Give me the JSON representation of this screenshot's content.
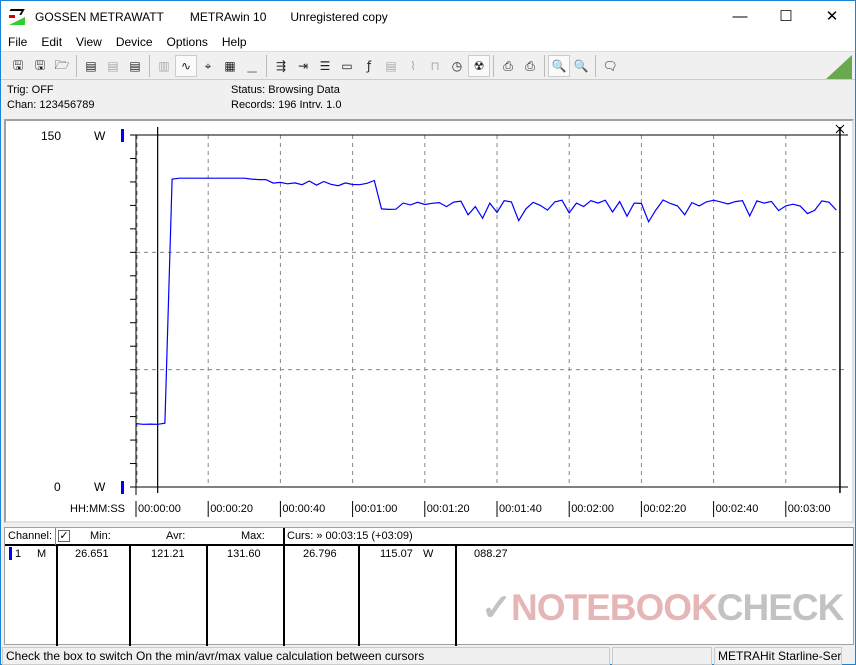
{
  "titlebar": {
    "brand": "GOSSEN METRAWATT",
    "app": "METRAwin 10",
    "license": "Unregistered copy",
    "minimize": "—",
    "maximize": "☐",
    "close": "✕"
  },
  "menu": [
    "File",
    "Edit",
    "View",
    "Device",
    "Options",
    "Help"
  ],
  "toolbar": [
    {
      "name": "save-as-icon",
      "glyph": "🖫"
    },
    {
      "name": "save-icon",
      "glyph": "🖫"
    },
    {
      "name": "open-folder-icon",
      "glyph": "🗁"
    },
    null,
    {
      "name": "device-read-icon",
      "glyph": "▤"
    },
    {
      "name": "device-stop-icon",
      "glyph": "▤",
      "disabled": true
    },
    {
      "name": "device-memory-icon",
      "glyph": "▤"
    },
    null,
    {
      "name": "display-icon",
      "glyph": "▥",
      "disabled": true
    },
    {
      "name": "waveform-view-icon",
      "glyph": "∿",
      "active": true
    },
    {
      "name": "crosshair-icon",
      "glyph": "⌖"
    },
    {
      "name": "table-view-icon",
      "glyph": "▦"
    },
    {
      "name": "histogram-icon",
      "glyph": "▁",
      "disabled": true
    },
    null,
    {
      "name": "export-icon",
      "glyph": "⇶"
    },
    {
      "name": "transfer-icon",
      "glyph": "⇥"
    },
    {
      "name": "list-icon",
      "glyph": "☰"
    },
    {
      "name": "monitor-icon",
      "glyph": "▭"
    },
    {
      "name": "function-icon",
      "glyph": "ƒ"
    },
    {
      "name": "meter-icon",
      "glyph": "▤",
      "disabled": true
    },
    {
      "name": "signal-icon",
      "glyph": "⌇",
      "disabled": true
    },
    {
      "name": "pulse-icon",
      "glyph": "⊓",
      "disabled": true
    },
    {
      "name": "timer-icon",
      "glyph": "◷"
    },
    {
      "name": "trigger-icon",
      "glyph": "☢",
      "active": true
    },
    null,
    {
      "name": "print-preview-icon",
      "glyph": "⎙"
    },
    {
      "name": "print-icon",
      "glyph": "⎙"
    },
    null,
    {
      "name": "zoom-wave-icon",
      "glyph": "🔍",
      "active": true
    },
    {
      "name": "zoom-icon",
      "glyph": "🔍"
    },
    null,
    {
      "name": "comment-icon",
      "glyph": "🗨"
    }
  ],
  "info": {
    "trig": "Trig: OFF",
    "chan": "Chan:  123456789",
    "status": "Status:   Browsing Data",
    "records": "Records: 196   Intrv. 1.0"
  },
  "chart_data": {
    "type": "line",
    "ylim": [
      0,
      150
    ],
    "y_top_label": "150",
    "y_bottom_label": "0",
    "yunit": "W",
    "xlabel": "HH:MM:SS",
    "xticks": [
      "00:00:00",
      "00:00:20",
      "00:00:40",
      "00:01:00",
      "00:01:20",
      "00:01:40",
      "00:02:00",
      "00:02:20",
      "00:02:40",
      "00:03:00"
    ],
    "grid": true,
    "series_color": "#0000ff",
    "x_seconds": [
      0,
      2,
      4,
      6,
      8,
      10,
      12,
      14,
      16,
      18,
      20,
      22,
      24,
      26,
      28,
      30,
      32,
      34,
      36,
      38,
      40,
      42,
      44,
      46,
      48,
      50,
      52,
      54,
      56,
      58,
      60,
      62,
      64,
      66,
      68,
      70,
      72,
      74,
      76,
      78,
      80,
      82,
      84,
      86,
      88,
      90,
      92,
      94,
      96,
      98,
      100,
      102,
      104,
      106,
      108,
      110,
      112,
      114,
      116,
      118,
      120,
      122,
      124,
      126,
      128,
      130,
      132,
      134,
      136,
      138,
      140,
      142,
      144,
      146,
      148,
      150,
      152,
      154,
      156,
      158,
      160,
      162,
      164,
      166,
      168,
      170,
      172,
      174,
      176,
      178,
      180,
      182,
      184,
      186,
      188,
      190,
      192,
      194
    ],
    "values": [
      27.0,
      26.7,
      26.8,
      26.7,
      27.2,
      131.2,
      131.6,
      131.6,
      131.6,
      131.6,
      131.6,
      131.6,
      131.6,
      131.6,
      131.6,
      131.6,
      131.2,
      131.0,
      131.0,
      129.5,
      129.8,
      129.2,
      129.6,
      128.8,
      130.4,
      128.6,
      130.2,
      129.0,
      128.4,
      129.6,
      128.9,
      128.8,
      129.4,
      130.6,
      118.5,
      118.3,
      118.4,
      121.0,
      120.2,
      121.3,
      120.4,
      120.9,
      121.2,
      119.5,
      121.4,
      121.8,
      116.0,
      119.5,
      114.5,
      121.0,
      117.0,
      122.0,
      121.5,
      113.5,
      118.5,
      121.3,
      120.0,
      118.0,
      121.5,
      122.2,
      116.8,
      121.0,
      119.5,
      122.0,
      121.0,
      122.2,
      117.2,
      121.6,
      115.4,
      121.0,
      120.8,
      113.0,
      118.0,
      122.3,
      120.8,
      119.8,
      116.0,
      121.2,
      119.8,
      121.5,
      122.2,
      121.5,
      120.6,
      121.6,
      122.0,
      115.5,
      121.9,
      121.0,
      121.7,
      117.8,
      119.8,
      120.5,
      119.7,
      116.5,
      117.9,
      121.9,
      121.3,
      118.0
    ],
    "cursor1_s": 6,
    "cursor2_s": 195
  },
  "table": {
    "headers": {
      "channel": "Channel:",
      "min": "Min:",
      "avr": "Avr:",
      "max": "Max:",
      "curs": "Curs: » 00:03:15 (+03:09)"
    },
    "checkbox_checked": true,
    "row": {
      "channel": "1",
      "mode": "M",
      "min": "26.651",
      "avr": "121.21",
      "max": "131.60",
      "curs1": "26.796",
      "curs2": "115.07",
      "unit": "W",
      "diff": "088.27"
    }
  },
  "watermark": {
    "red": "NOTEBOOK",
    "grey": "CHECK"
  },
  "status": {
    "hint": "Check the box to switch On the min/avr/max value calculation between cursors",
    "panel2": "",
    "device": "METRAHit Starline-Seri"
  }
}
